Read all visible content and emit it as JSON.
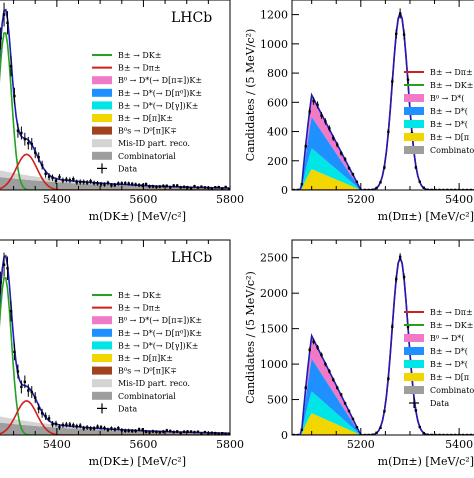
{
  "chart_data": [
    {
      "type": "line",
      "panel": "top-left",
      "label": "LHCb",
      "xlabel": "m(DK±) [MeV/c²]",
      "ylabel": "",
      "xlim": [
        5130,
        5800
      ],
      "ylim": [
        0,
        240
      ],
      "xticks": [
        5200,
        5400,
        5600,
        5800
      ],
      "yticks": [],
      "legend_position": "center-right",
      "legend": [
        {
          "label": "B± → DK±",
          "color": "#22a31f",
          "kind": "line"
        },
        {
          "label": "B± → Dπ±",
          "color": "#d11f1f",
          "kind": "line"
        },
        {
          "label": "B⁰ → D*(→ D[π∓])K±",
          "color": "#f07ac8",
          "kind": "box"
        },
        {
          "label": "B± → D*(→ D[π⁰])K±",
          "color": "#1e90ff",
          "kind": "box"
        },
        {
          "label": "B± → D*(→ D[γ])K±",
          "color": "#00e5e5",
          "kind": "box"
        },
        {
          "label": "B± → D[π]K±",
          "color": "#f2d600",
          "kind": "box"
        },
        {
          "label": "B⁰s → D⁰[π]K∓",
          "color": "#a0421c",
          "kind": "box"
        },
        {
          "label": "Mis-ID part. reco.",
          "color": "#d4d4d4",
          "kind": "box"
        },
        {
          "label": "Combinatorial",
          "color": "#9e9e9e",
          "kind": "box"
        },
        {
          "label": "Data",
          "color": "#000000",
          "kind": "errorbar"
        }
      ],
      "peak_series": [
        {
          "name": "B± → DK±",
          "mean": 5280,
          "sigma": 15,
          "amp": 200,
          "color": "#22a31f"
        },
        {
          "name": "B± → Dπ±",
          "mean": 5330,
          "sigma": 24,
          "amp": 45,
          "color": "#d11f1f"
        }
      ],
      "stack": [
        {
          "name": "Combinatorial",
          "color": "#9e9e9e",
          "amp": 28,
          "decay": 260
        },
        {
          "name": "Mis-ID part. reco.",
          "color": "#d4d4d4",
          "amp": 20,
          "decay": 160
        }
      ]
    },
    {
      "type": "line",
      "panel": "top-right",
      "label": "",
      "xlabel": "m(Dπ±) [MeV/c²]",
      "ylabel": "Candidates / (5 MeV/c²)",
      "xlim": [
        5060,
        5650
      ],
      "ylim": [
        0,
        1300
      ],
      "xticks": [
        5200,
        5400,
        5600
      ],
      "yticks": [
        0,
        200,
        400,
        600,
        800,
        1000,
        1200
      ],
      "legend_position": "center-right",
      "legend": [
        {
          "label": "B± → Dπ±",
          "color": "#d11f1f",
          "kind": "line"
        },
        {
          "label": "B± → DK±",
          "color": "#22a31f",
          "kind": "line"
        },
        {
          "label": "B⁰ → D*(",
          "color": "#f07ac8",
          "kind": "box"
        },
        {
          "label": "B± → D*(",
          "color": "#1e90ff",
          "kind": "box"
        },
        {
          "label": "B± → D*(",
          "color": "#00e5e5",
          "kind": "box"
        },
        {
          "label": "B± → D[π",
          "color": "#f2d600",
          "kind": "box"
        },
        {
          "label": "Combinatorial",
          "color": "#9e9e9e",
          "kind": "box"
        }
      ],
      "peak_series": [
        {
          "name": "B± → Dπ±",
          "mean": 5280,
          "sigma": 16,
          "amp": 1210,
          "color": "#d11f1f"
        }
      ],
      "partreco": {
        "start": 5085,
        "end": 5200,
        "peak": 5100,
        "total": 650
      }
    },
    {
      "type": "line",
      "panel": "bottom-left",
      "label": "LHCb",
      "xlabel": "m(DK±) [MeV/c²]",
      "ylabel": "",
      "xlim": [
        5130,
        5800
      ],
      "ylim": [
        0,
        240
      ],
      "xticks": [
        5200,
        5400,
        5600,
        5800
      ],
      "yticks": [],
      "legend_position": "center-right",
      "legend": [
        {
          "label": "B± → DK±",
          "color": "#22a31f",
          "kind": "line"
        },
        {
          "label": "B± → Dπ±",
          "color": "#d11f1f",
          "kind": "line"
        },
        {
          "label": "B⁰ → D*(→ D[π∓])K±",
          "color": "#f07ac8",
          "kind": "box"
        },
        {
          "label": "B± → D*(→ D[π⁰])K±",
          "color": "#1e90ff",
          "kind": "box"
        },
        {
          "label": "B± → D*(→ D[γ])K±",
          "color": "#00e5e5",
          "kind": "box"
        },
        {
          "label": "B± → D[π]K±",
          "color": "#f2d600",
          "kind": "box"
        },
        {
          "label": "B⁰s → D⁰[π]K∓",
          "color": "#a0421c",
          "kind": "box"
        },
        {
          "label": "Mis-ID part. reco.",
          "color": "#d4d4d4",
          "kind": "box"
        },
        {
          "label": "Combinatorial",
          "color": "#9e9e9e",
          "kind": "box"
        },
        {
          "label": "Data",
          "color": "#000000",
          "kind": "errorbar"
        }
      ],
      "peak_series": [
        {
          "name": "B± → DK±",
          "mean": 5280,
          "sigma": 15,
          "amp": 195,
          "color": "#22a31f"
        },
        {
          "name": "B± → Dπ±",
          "mean": 5330,
          "sigma": 24,
          "amp": 42,
          "color": "#d11f1f"
        }
      ],
      "stack": [
        {
          "name": "Combinatorial",
          "color": "#9e9e9e",
          "amp": 26,
          "decay": 260
        },
        {
          "name": "Mis-ID part. reco.",
          "color": "#d4d4d4",
          "amp": 18,
          "decay": 160
        }
      ]
    },
    {
      "type": "line",
      "panel": "bottom-right",
      "label": "",
      "xlabel": "m(Dπ±) [MeV/c²]",
      "ylabel": "Candidates / (5 MeV/c²)",
      "xlim": [
        5060,
        5650
      ],
      "ylim": [
        0,
        2750
      ],
      "xticks": [
        5200,
        5400,
        5600
      ],
      "yticks": [
        0,
        500,
        1000,
        1500,
        2000,
        2500
      ],
      "legend_position": "center-right",
      "legend": [
        {
          "label": "B± → Dπ±",
          "color": "#d11f1f",
          "kind": "line"
        },
        {
          "label": "B± → DK±",
          "color": "#22a31f",
          "kind": "line"
        },
        {
          "label": "B⁰ → D*(",
          "color": "#f07ac8",
          "kind": "box"
        },
        {
          "label": "B± → D*(",
          "color": "#1e90ff",
          "kind": "box"
        },
        {
          "label": "B± → D*(",
          "color": "#00e5e5",
          "kind": "box"
        },
        {
          "label": "B± → D[π",
          "color": "#f2d600",
          "kind": "box"
        },
        {
          "label": "Combinatorial",
          "color": "#9e9e9e",
          "kind": "box"
        },
        {
          "label": "Data",
          "color": "#000000",
          "kind": "errorbar"
        }
      ],
      "peak_series": [
        {
          "name": "B± → Dπ±",
          "mean": 5280,
          "sigma": 16,
          "amp": 2500,
          "color": "#d11f1f"
        }
      ],
      "partreco": {
        "start": 5085,
        "end": 5200,
        "peak": 5100,
        "total": 1400
      }
    }
  ]
}
